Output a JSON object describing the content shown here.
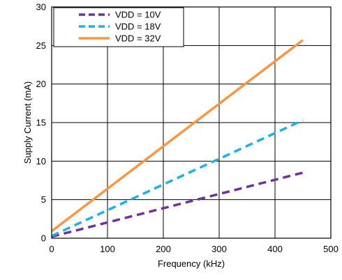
{
  "chart_data": {
    "type": "line",
    "xlabel": "Frequency (kHz)",
    "ylabel": "Supply Current (mA)",
    "xlim": [
      0,
      500
    ],
    "ylim": [
      0,
      30
    ],
    "xticks": [
      0,
      100,
      200,
      300,
      400,
      500
    ],
    "yticks": [
      0,
      5,
      10,
      15,
      20,
      25,
      30
    ],
    "grid": true,
    "legend_position": "top-left",
    "series": [
      {
        "name": "VDD = 10V",
        "x": [
          0,
          450
        ],
        "y": [
          0.2,
          8.5
        ],
        "color": "#7030a0",
        "style": "dashed"
      },
      {
        "name": "VDD = 18V",
        "x": [
          0,
          450
        ],
        "y": [
          0.3,
          15.3
        ],
        "color": "#1fb1e6",
        "style": "dashed"
      },
      {
        "name": "VDD = 32V",
        "x": [
          0,
          450
        ],
        "y": [
          0.9,
          25.7
        ],
        "color": "#f79646",
        "style": "solid"
      }
    ]
  }
}
